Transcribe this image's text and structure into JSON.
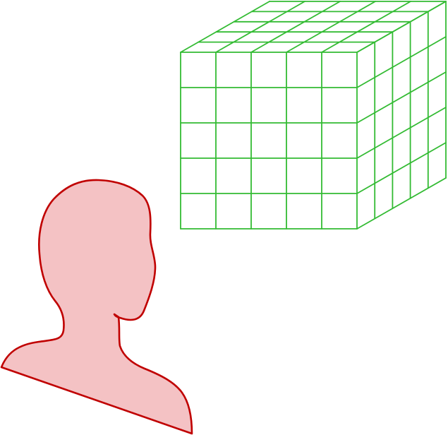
{
  "scene": {
    "head": {
      "fill": "#f4c2c4",
      "stroke": "#c00000"
    },
    "cube": {
      "stroke": "#33bb33",
      "grid": {
        "columns": 5,
        "rows": 5,
        "depth": 5
      }
    }
  }
}
